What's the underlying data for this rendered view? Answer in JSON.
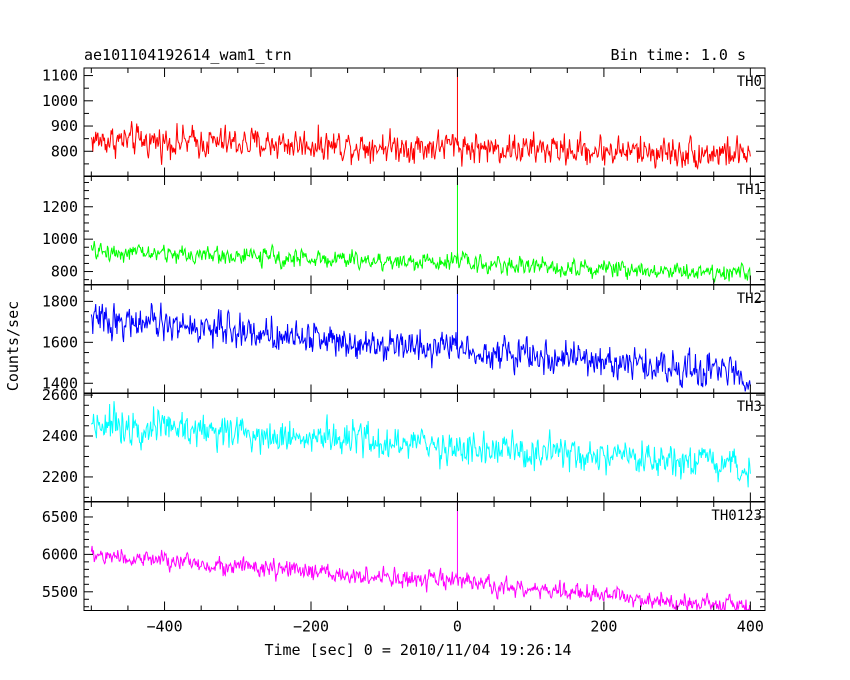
{
  "header": {
    "title": "ae101104192614_wam1_trn",
    "bin_time": "Bin time: 1.0 s"
  },
  "chart_data": {
    "type": "line",
    "xlabel": "Time [sec] 0 = 2010/11/04 19:26:14",
    "ylabel": "Counts/sec",
    "xlim": [
      -510,
      420
    ],
    "x_ticks": [
      -400,
      -200,
      0,
      200,
      400
    ],
    "x_range": [
      -500,
      400
    ],
    "panels": [
      {
        "label": "TH0",
        "color": "#ff0000",
        "ylim": [
          700,
          1130
        ],
        "y_ticks": [
          800,
          900,
          1000,
          1100
        ],
        "trend_start": 845,
        "trend_end": 790,
        "noise": 50,
        "burst": {
          "x": 0,
          "peak": 1130,
          "pre_rise": 20
        },
        "min_clip": 730
      },
      {
        "label": "TH1",
        "color": "#00ff00",
        "ylim": [
          720,
          1390
        ],
        "y_ticks": [
          800,
          1000,
          1200
        ],
        "trend_start": 925,
        "trend_end": 790,
        "noise": 45,
        "burst": {
          "x": 0,
          "peak": 1390,
          "pre_rise": 60
        },
        "min_clip": 730
      },
      {
        "label": "TH2",
        "color": "#0000ff",
        "ylim": [
          1350,
          1880
        ],
        "y_ticks": [
          1400,
          1600,
          1800
        ],
        "trend_start": 1715,
        "trend_end": 1445,
        "noise": 65,
        "burst": {
          "x": 0,
          "peak": 1880,
          "pre_rise": 40
        },
        "min_clip": 1360
      },
      {
        "label": "TH3",
        "color": "#00ffff",
        "ylim": [
          2080,
          2610
        ],
        "y_ticks": [
          2200,
          2400,
          2600
        ],
        "trend_start": 2470,
        "trend_end": 2240,
        "noise": 70,
        "burst": null,
        "min_clip": 2090
      },
      {
        "label": "TH0123",
        "color": "#ff00ff",
        "ylim": [
          5250,
          6700
        ],
        "y_ticks": [
          5500,
          6000,
          6500
        ],
        "trend_start": 5990,
        "trend_end": 5300,
        "noise": 100,
        "burst": {
          "x": 0,
          "peak": 6700,
          "pre_rise": 120
        },
        "min_clip": 5200
      }
    ]
  }
}
